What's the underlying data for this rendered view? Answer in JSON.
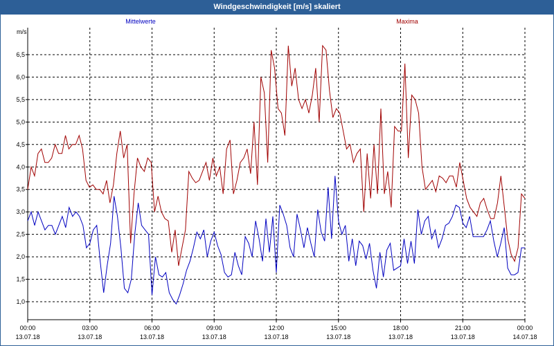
{
  "window": {
    "title": "Windgeschwindigkeit [m/s] skaliert"
  },
  "chart_data": {
    "type": "line",
    "title": "Windgeschwindigkeit [m/s] skaliert",
    "ylabel": "m/s",
    "xlabel": "",
    "xlim": [
      0,
      24
    ],
    "ylim": [
      0.6,
      7.1
    ],
    "grid": true,
    "x_ticks": [
      {
        "time": "00:00",
        "date": "13.07.18"
      },
      {
        "time": "03:00",
        "date": "13.07.18"
      },
      {
        "time": "06:00",
        "date": "13.07.18"
      },
      {
        "time": "09:00",
        "date": "13.07.18"
      },
      {
        "time": "12:00",
        "date": "13.07.18"
      },
      {
        "time": "15:00",
        "date": "13.07.18"
      },
      {
        "time": "18:00",
        "date": "13.07.18"
      },
      {
        "time": "21:00",
        "date": "13.07.18"
      },
      {
        "time": "00:00",
        "date": "14.07.18"
      }
    ],
    "y_ticks": [
      "1.0",
      "1.5",
      "2.0",
      "2.5",
      "3.0",
      "3.5",
      "4.0",
      "4.5",
      "5.0",
      "5.5",
      "6.0",
      "6.5"
    ],
    "series": [
      {
        "name": "Mittelwerte",
        "color": "#0000c0",
        "legend_position": "top-left",
        "values": [
          2.8,
          3.0,
          2.7,
          3.0,
          2.8,
          2.6,
          2.7,
          2.7,
          2.5,
          2.7,
          2.9,
          2.65,
          3.1,
          2.9,
          3.0,
          2.9,
          2.7,
          2.2,
          2.3,
          2.6,
          2.7,
          1.9,
          1.2,
          1.8,
          2.3,
          3.35,
          2.9,
          2.2,
          1.3,
          1.2,
          1.5,
          2.5,
          3.2,
          2.7,
          2.6,
          2.5,
          1.15,
          2.0,
          1.6,
          1.55,
          1.65,
          1.2,
          1.05,
          0.95,
          1.15,
          1.4,
          1.7,
          1.9,
          2.2,
          2.55,
          2.4,
          2.6,
          2.0,
          2.35,
          2.55,
          2.25,
          2.05,
          1.65,
          1.55,
          1.6,
          2.1,
          1.8,
          1.6,
          2.45,
          2.3,
          2.0,
          2.8,
          2.4,
          1.9,
          2.85,
          2.1,
          2.9,
          1.65,
          3.15,
          2.95,
          2.7,
          2.2,
          2.0,
          2.95,
          2.6,
          2.2,
          2.65,
          2.3,
          2.0,
          3.05,
          2.55,
          2.35,
          3.55,
          2.4,
          3.8,
          2.8,
          2.5,
          2.7,
          1.9,
          2.4,
          1.8,
          2.35,
          2.25,
          1.95,
          2.3,
          1.7,
          1.3,
          2.1,
          1.55,
          2.15,
          2.3,
          1.7,
          1.75,
          1.8,
          2.4,
          1.85,
          2.35,
          1.85,
          3.05,
          2.5,
          2.8,
          2.9,
          2.4,
          2.6,
          2.2,
          2.4,
          2.7,
          2.75,
          2.9,
          3.15,
          3.1,
          2.75,
          2.65,
          2.9,
          2.45,
          2.45,
          2.45,
          2.45,
          2.6,
          2.8,
          2.35,
          2.0,
          2.3,
          2.65,
          1.75,
          1.6,
          1.6,
          1.65,
          2.2,
          2.2
        ]
      },
      {
        "name": "Maxima",
        "color": "#a00000",
        "legend_position": "top-right",
        "values": [
          3.5,
          4.0,
          3.8,
          4.3,
          4.4,
          4.1,
          4.1,
          4.2,
          4.5,
          4.3,
          4.3,
          4.7,
          4.4,
          4.5,
          4.5,
          4.7,
          4.4,
          3.7,
          3.55,
          3.6,
          3.5,
          3.5,
          3.4,
          3.7,
          3.2,
          3.6,
          4.3,
          4.8,
          4.2,
          4.5,
          2.3,
          3.4,
          4.2,
          4.0,
          3.9,
          4.2,
          4.1,
          3.0,
          3.35,
          3.0,
          2.85,
          2.8,
          2.1,
          2.6,
          1.8,
          2.2,
          2.6,
          3.9,
          3.75,
          3.65,
          3.7,
          3.9,
          4.1,
          3.7,
          4.2,
          3.8,
          4.0,
          3.4,
          4.4,
          4.6,
          3.4,
          3.7,
          4.1,
          4.2,
          4.4,
          3.85,
          5.0,
          3.6,
          6.0,
          5.65,
          4.1,
          6.6,
          6.2,
          5.3,
          5.2,
          4.7,
          6.7,
          5.8,
          6.2,
          5.5,
          5.3,
          5.5,
          5.2,
          5.6,
          6.2,
          5.0,
          6.7,
          6.6,
          5.7,
          5.1,
          5.3,
          5.2,
          4.8,
          4.4,
          4.5,
          4.1,
          4.3,
          4.4,
          3.0,
          4.3,
          3.3,
          4.5,
          3.4,
          5.3,
          3.4,
          3.9,
          3.1,
          4.9,
          4.8,
          4.8,
          6.3,
          4.2,
          5.6,
          5.5,
          5.2,
          4.0,
          3.5,
          3.6,
          3.7,
          3.45,
          3.8,
          3.75,
          3.65,
          3.8,
          3.8,
          3.55,
          4.1,
          3.7,
          3.3,
          3.1,
          3.0,
          2.9,
          3.2,
          3.3,
          3.05,
          2.85,
          2.85,
          3.2,
          3.8,
          3.1,
          2.4,
          2.05,
          1.9,
          2.2,
          3.4,
          3.3
        ]
      }
    ]
  }
}
